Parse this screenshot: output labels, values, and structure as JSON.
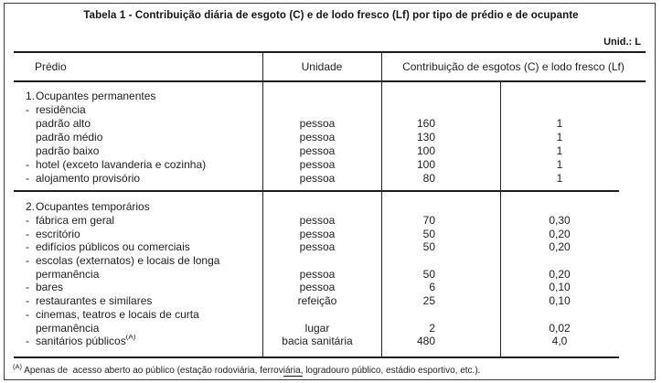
{
  "page": {
    "title": "Tabela 1 - Contribuição diária de esgoto (C) e de lodo fresco (Lf) por tipo de prédio e de ocupante",
    "unit_note": "Unid.: L"
  },
  "table": {
    "headers": {
      "predio": "Prédio",
      "unidade": "Unidade",
      "contribuicao": "Contribuição de esgotos (C) e lodo fresco (Lf)"
    },
    "sections": [
      {
        "rows": [
          {
            "bullet": "1.",
            "label": "Ocupantes permanentes",
            "unit": "",
            "c": "",
            "lf": ""
          },
          {
            "bullet": "-",
            "label": "residência",
            "unit": "",
            "c": "",
            "lf": ""
          },
          {
            "bullet": "",
            "label": "padrão alto",
            "unit": "pessoa",
            "c": "160",
            "lf": "1"
          },
          {
            "bullet": "",
            "label": "padrão médio",
            "unit": "pessoa",
            "c": "130",
            "lf": "1"
          },
          {
            "bullet": "",
            "label": "padrão baixo",
            "unit": "pessoa",
            "c": "100",
            "lf": "1"
          },
          {
            "bullet": "-",
            "label": "hotel (exceto lavanderia e cozinha)",
            "unit": "pessoa",
            "c": "100",
            "lf": "1"
          },
          {
            "bullet": "-",
            "label": "alojamento provisório",
            "unit": "pessoa",
            "c": "80",
            "lf": "1"
          }
        ]
      },
      {
        "rows": [
          {
            "bullet": "2.",
            "label": "Ocupantes temporários",
            "unit": "",
            "c": "",
            "lf": ""
          },
          {
            "bullet": "-",
            "label": "fábrica em geral",
            "unit": "pessoa",
            "c": "70",
            "lf": "0,30"
          },
          {
            "bullet": "-",
            "label": "escritório",
            "unit": "pessoa",
            "c": "50",
            "lf": "0,20"
          },
          {
            "bullet": "-",
            "label": "edifícios públicos ou comerciais",
            "unit": "pessoa",
            "c": "50",
            "lf": "0,20"
          },
          {
            "bullet": "-",
            "label": "escolas (externatos) e locais de longa",
            "unit": "",
            "c": "",
            "lf": ""
          },
          {
            "bullet": "",
            "label": "permanência",
            "unit": "pessoa",
            "c": "50",
            "lf": "0,20"
          },
          {
            "bullet": "-",
            "label": "bares",
            "unit": "pessoa",
            "c": "6",
            "lf": "0,10"
          },
          {
            "bullet": "-",
            "label": "restaurantes e similares",
            "unit": "refeição",
            "c": "25",
            "lf": "0,10"
          },
          {
            "bullet": "-",
            "label": "cinemas, teatros e locais de curta",
            "unit": "",
            "c": "",
            "lf": ""
          },
          {
            "bullet": "",
            "label": "permanência",
            "unit": "lugar",
            "c": "2",
            "lf": "0,02"
          },
          {
            "bullet": "-",
            "label": "sanitários públicos",
            "sup": "(A)",
            "unit": "bacia sanitária",
            "c": "480",
            "lf": "4,0"
          }
        ]
      }
    ]
  },
  "footnote": {
    "sup": "(A)",
    "pre": " Apenas de  acesso aberto ao público (estação rodoviária, ferrov",
    "underlined": "iária,",
    "post": " logradouro público, estádio esportivo, etc.)."
  }
}
